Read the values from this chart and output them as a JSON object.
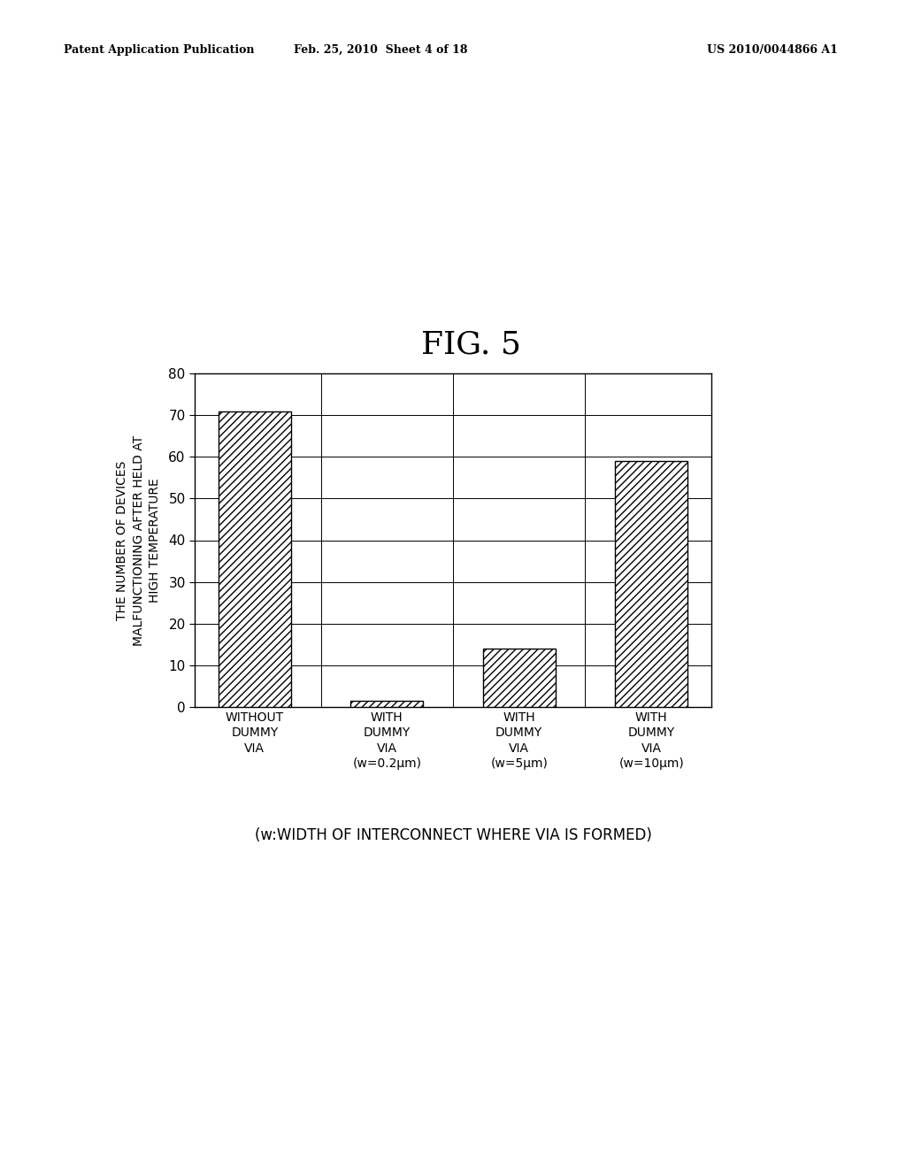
{
  "title": "FIG. 5",
  "header_left": "Patent Application Publication",
  "header_mid": "Feb. 25, 2010  Sheet 4 of 18",
  "header_right": "US 2010/0044866 A1",
  "ylabel_lines": [
    "THE NUMBER OF DEVICES",
    "MALFUNCTIONING AFTER HELD AT",
    "HIGH TEMPERATURE"
  ],
  "categories": [
    "WITHOUT\nDUMMY\nVIA",
    "WITH\nDUMMY\nVIA\n(w=0.2μm)",
    "WITH\nDUMMY\nVIA\n(w=5μm)",
    "WITH\nDUMMY\nVIA\n(w=10μm)"
  ],
  "values": [
    71,
    1.5,
    14,
    59
  ],
  "ylim": [
    0,
    80
  ],
  "yticks": [
    0,
    10,
    20,
    30,
    40,
    50,
    60,
    70,
    80
  ],
  "footnote": "(w:WIDTH OF INTERCONNECT WHERE VIA IS FORMED)",
  "bar_color": "white",
  "bar_edgecolor": "black",
  "hatch": "////",
  "background_color": "white",
  "title_fontsize": 26,
  "axis_fontsize": 10,
  "tick_fontsize": 11,
  "cat_fontsize": 10,
  "footnote_fontsize": 12,
  "header_fontsize": 9
}
